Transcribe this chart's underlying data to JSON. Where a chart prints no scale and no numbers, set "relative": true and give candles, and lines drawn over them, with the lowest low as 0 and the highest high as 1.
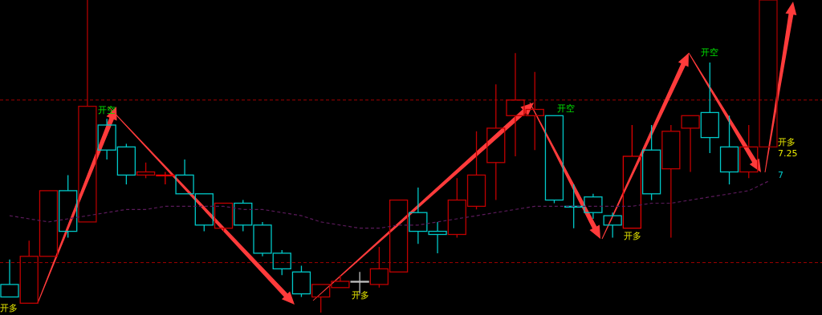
{
  "chart_data": {
    "type": "candlestick",
    "relative": true,
    "categories": [
      null,
      null,
      null,
      null,
      null,
      null,
      null,
      null,
      null,
      null,
      null,
      null,
      null,
      null,
      null,
      null,
      null,
      null,
      null,
      null,
      null,
      null,
      null,
      null,
      null,
      null,
      null,
      null,
      null,
      null,
      null,
      null,
      null,
      null,
      null,
      null,
      null,
      null,
      null,
      null
    ],
    "ohlc": [
      [
        0.09,
        0.17,
        0.05,
        0.05
      ],
      [
        0.03,
        0.23,
        0.03,
        0.18
      ],
      [
        0.18,
        0.39,
        0.18,
        0.39
      ],
      [
        0.39,
        0.44,
        0.24,
        0.26
      ],
      [
        0.29,
        1.0,
        0.29,
        0.66
      ],
      [
        0.6,
        0.62,
        0.49,
        0.52
      ],
      [
        0.53,
        0.54,
        0.41,
        0.44
      ],
      [
        0.44,
        0.48,
        0.43,
        0.45
      ],
      [
        0.44,
        0.45,
        0.41,
        0.44
      ],
      [
        0.44,
        0.49,
        0.38,
        0.38
      ],
      [
        0.38,
        0.38,
        0.26,
        0.28
      ],
      [
        0.27,
        0.35,
        0.26,
        0.35
      ],
      [
        0.35,
        0.36,
        0.26,
        0.28
      ],
      [
        0.28,
        0.29,
        0.18,
        0.19
      ],
      [
        0.19,
        0.2,
        0.12,
        0.14
      ],
      [
        0.13,
        0.15,
        0.05,
        0.06
      ],
      [
        0.05,
        0.09,
        0.0,
        0.09
      ],
      [
        0.08,
        0.12,
        0.08,
        0.1
      ],
      [
        0.1,
        0.13,
        0.06,
        0.1
      ],
      [
        0.09,
        0.21,
        0.08,
        0.14
      ],
      [
        0.13,
        0.36,
        0.13,
        0.36
      ],
      [
        0.32,
        0.4,
        0.22,
        0.26
      ],
      [
        0.26,
        0.29,
        0.19,
        0.25
      ],
      [
        0.25,
        0.43,
        0.24,
        0.36
      ],
      [
        0.34,
        0.58,
        0.33,
        0.44
      ],
      [
        0.48,
        0.73,
        0.36,
        0.59
      ],
      [
        0.63,
        0.83,
        0.5,
        0.68
      ],
      [
        0.63,
        0.77,
        0.52,
        0.65
      ],
      [
        0.63,
        0.63,
        0.35,
        0.36
      ],
      [
        0.34,
        0.41,
        0.27,
        0.34
      ],
      [
        0.37,
        0.38,
        0.3,
        0.32
      ],
      [
        0.31,
        0.32,
        0.24,
        0.28
      ],
      [
        0.27,
        0.6,
        0.27,
        0.5
      ],
      [
        0.52,
        0.6,
        0.36,
        0.38
      ],
      [
        0.46,
        0.6,
        0.24,
        0.58
      ],
      [
        0.59,
        0.63,
        0.45,
        0.63
      ],
      [
        0.64,
        0.8,
        0.51,
        0.56
      ],
      [
        0.53,
        0.63,
        0.41,
        0.45
      ],
      [
        0.45,
        0.6,
        0.43,
        0.53
      ],
      [
        0.53,
        1.0,
        0.53,
        1.0
      ]
    ],
    "colors": [
      "#00c8c8",
      "#c00000",
      "#c00000",
      "#00c8c8",
      "#b00000",
      "#00c8c8",
      "#00c8c8",
      "#c00000",
      "#e00000",
      "#00c8c8",
      "#00c8c8",
      "#c00000",
      "#00c8c8",
      "#00c8c8",
      "#00c8c8",
      "#00c8c8",
      "#c00000",
      "#c00000",
      "#c0c0c0",
      "#c00000",
      "#c00000",
      "#00c8c8",
      "#00c8c8",
      "#c00000",
      "#c00000",
      "#c00000",
      "#c00000",
      "#c00000",
      "#00c8c8",
      "#00c8c8",
      "#00c8c8",
      "#00c8c8",
      "#e00000",
      "#00c8c8",
      "#c00000",
      "#c00000",
      "#00c8c8",
      "#00c8c8",
      "#c00000",
      "#a00000"
    ],
    "series": [
      {
        "type": "line",
        "color": "#5a1a5a",
        "line_style": "dashed",
        "values": [
          0.31,
          0.3,
          0.29,
          0.3,
          0.31,
          0.32,
          0.33,
          0.33,
          0.34,
          0.34,
          0.34,
          0.34,
          0.33,
          0.33,
          0.32,
          0.31,
          0.29,
          0.28,
          0.27,
          0.27,
          0.28,
          0.28,
          0.29,
          0.3,
          0.31,
          0.32,
          0.33,
          0.34,
          0.34,
          0.34,
          0.34,
          0.34,
          0.34,
          0.35,
          0.35,
          0.36,
          0.37,
          0.38,
          0.39,
          0.42
        ]
      }
    ],
    "ref_lines": [
      {
        "axis": "y",
        "value": 0.68,
        "color": "#a00000",
        "line_style": "dashed"
      },
      {
        "axis": "y",
        "value": 0.16,
        "color": "#a00000",
        "line_style": "dashed"
      }
    ],
    "annotations": [
      "开多",
      "开空",
      "开多",
      "开空",
      "开多",
      "开空",
      "开多",
      "7.25",
      "7"
    ]
  }
}
